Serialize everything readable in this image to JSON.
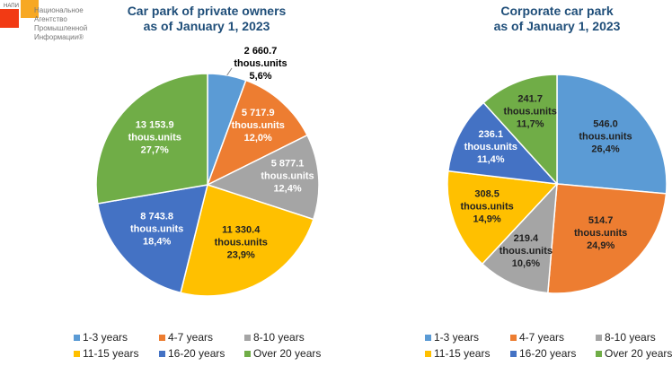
{
  "logo": {
    "abbr": "НАПИ",
    "text": "Национальное Агентство Промышленной Информации®"
  },
  "chart_data": [
    {
      "type": "pie",
      "title": "Car park of private owners\nas of January 1, 2023",
      "categories": [
        "1-3 years",
        "4-7 years",
        "8-10 years",
        "11-15 years",
        "16-20 years",
        "Over 20 years"
      ],
      "values": [
        2660.7,
        5717.9,
        5877.1,
        11330.4,
        8743.8,
        13153.9
      ],
      "unit": "thous.units",
      "value_labels": [
        "2 660.7",
        "5 717.9",
        "5 877.1",
        "11 330.4",
        "8 743.8",
        "13 153.9"
      ],
      "percent_labels": [
        "5,6%",
        "12,0%",
        "12,4%",
        "23,9%",
        "18,4%",
        "27,7%"
      ]
    },
    {
      "type": "pie",
      "title": "Corporate car park\nas of January 1, 2023",
      "categories": [
        "1-3 years",
        "4-7 years",
        "8-10 years",
        "11-15 years",
        "16-20 years",
        "Over 20 years"
      ],
      "values": [
        546.0,
        514.7,
        219.4,
        308.5,
        236.1,
        241.7
      ],
      "unit": "thous.units",
      "value_labels": [
        "546.0",
        "514.7",
        "219.4",
        "308.5",
        "236.1",
        "241.7"
      ],
      "percent_labels": [
        "26,4%",
        "24,9%",
        "10,6%",
        "14,9%",
        "11,4%",
        "11,7%"
      ]
    }
  ],
  "colors": [
    "#5B9BD5",
    "#ED7D31",
    "#A5A5A5",
    "#FFC000",
    "#4472C4",
    "#70AD47"
  ]
}
